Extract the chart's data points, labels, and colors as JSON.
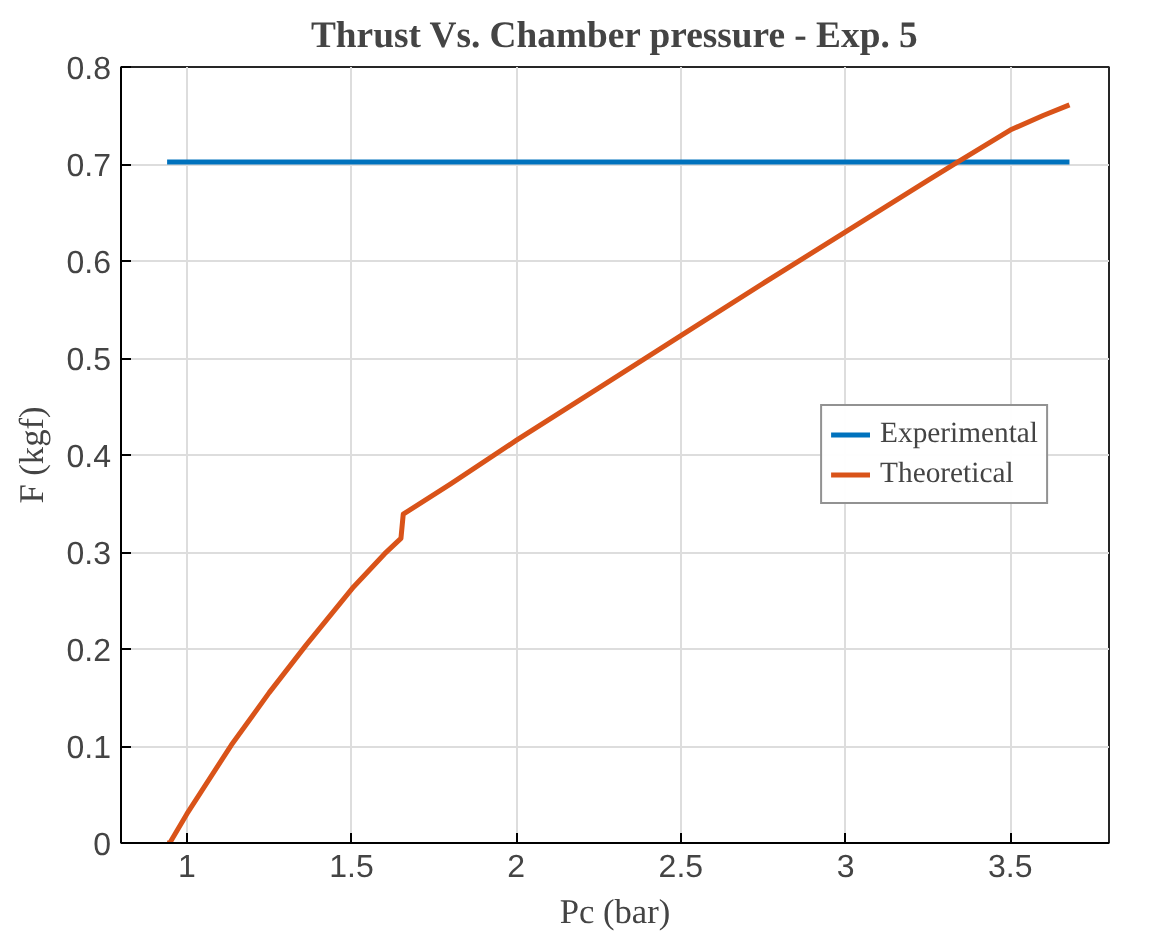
{
  "chart_data": {
    "type": "line",
    "title": "Thrust Vs. Chamber pressure - Exp. 5",
    "xlabel": "Pc (bar)",
    "ylabel": "F (kgf)",
    "xlim": [
      0.8,
      3.8
    ],
    "ylim": [
      0,
      0.8
    ],
    "xticks": [
      1,
      1.5,
      2,
      2.5,
      3,
      3.5
    ],
    "yticks": [
      0,
      0.1,
      0.2,
      0.3,
      0.4,
      0.5,
      0.6,
      0.7,
      0.8
    ],
    "grid": true,
    "legend": "right",
    "line_style": "solid",
    "series": [
      {
        "name": "Experimental",
        "color": "#0072bd",
        "x": [
          0.94,
          3.68
        ],
        "values": [
          0.702,
          0.702
        ]
      },
      {
        "name": "Theoretical",
        "color": "#d95319",
        "x": [
          0.94,
          0.948,
          1.0,
          1.135,
          1.25,
          1.362,
          1.506,
          1.6,
          1.65,
          1.657,
          1.8,
          2.0,
          2.25,
          2.5,
          2.75,
          3.0,
          3.25,
          3.34,
          3.5,
          3.6,
          3.68
        ],
        "values": [
          0.0,
          0.0,
          0.03,
          0.101,
          0.155,
          0.204,
          0.264,
          0.298,
          0.314,
          0.339,
          0.37,
          0.415,
          0.469,
          0.523,
          0.577,
          0.63,
          0.683,
          0.702,
          0.735,
          0.75,
          0.761
        ]
      }
    ]
  }
}
